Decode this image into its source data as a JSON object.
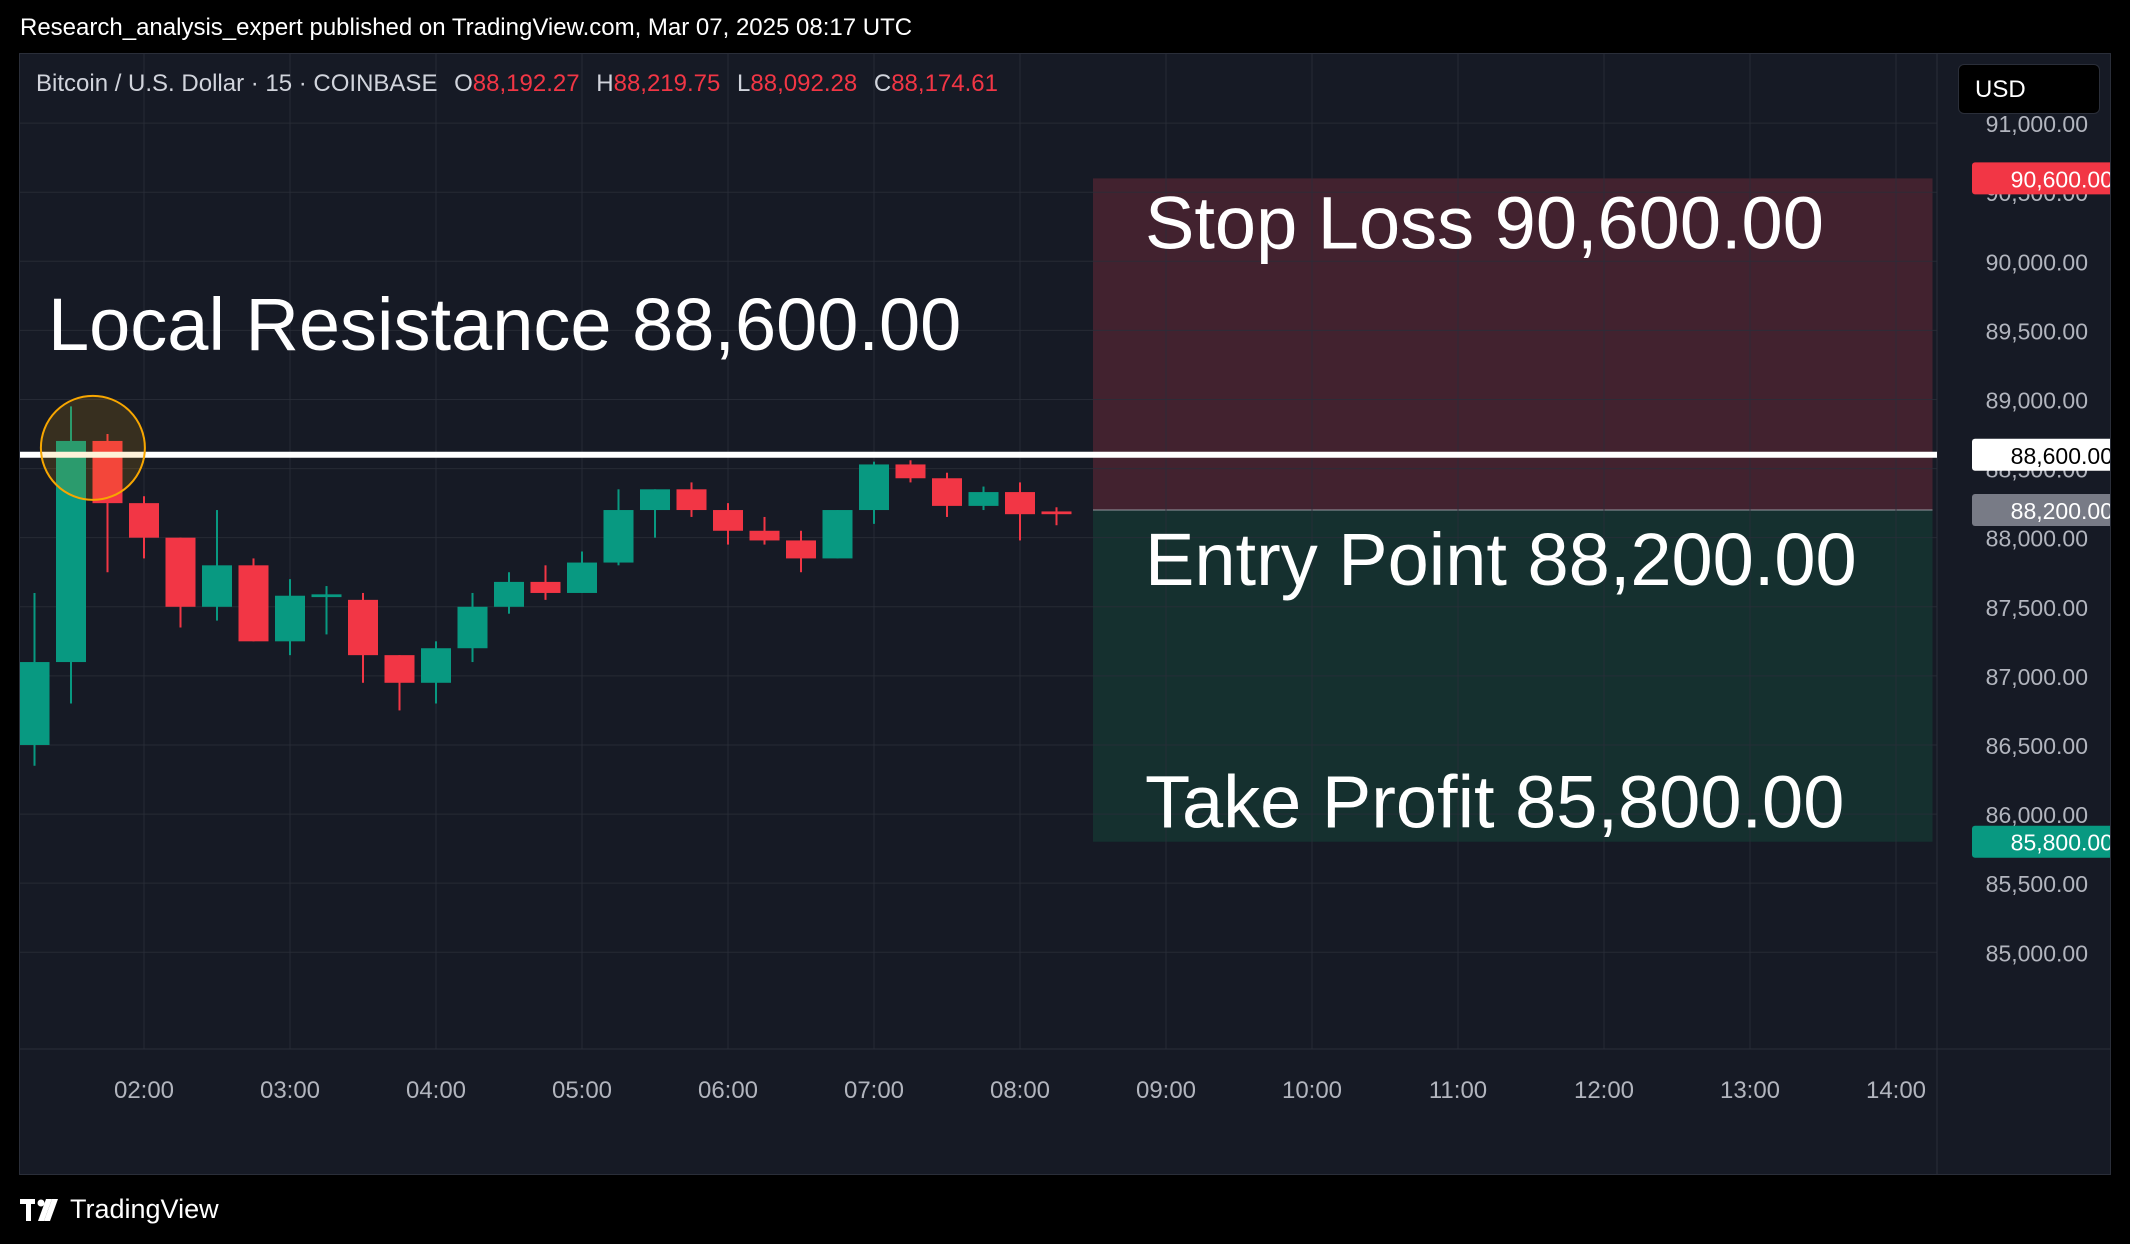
{
  "header": {
    "published": "Research_analysis_expert published on TradingView.com, Mar 07, 2025 08:17 UTC"
  },
  "legend": {
    "symbol": "Bitcoin / U.S. Dollar · 15 · COINBASE",
    "open_label": "O",
    "open": "88,192.27",
    "high_label": "H",
    "high": "88,219.75",
    "low_label": "L",
    "low": "88,092.28",
    "close_label": "C",
    "close": "88,174.61"
  },
  "currency_button": "USD",
  "footer": {
    "brand": "TradingView",
    "logo_icon": "tradingview-logo-icon"
  },
  "colors": {
    "up": "#089981",
    "down": "#f23645",
    "background": "#161a25",
    "grid": "#2a2e39",
    "stop_zone": "#42222f",
    "profit_zone": "#15302f",
    "resistance_line": "#ffffff",
    "highlight_circle": "#f7a600"
  },
  "chart_data": {
    "type": "candlestick",
    "interval_minutes": 15,
    "x_tick_labels": [
      "02:00",
      "03:00",
      "04:00",
      "05:00",
      "06:00",
      "07:00",
      "08:00",
      "09:00",
      "10:00",
      "11:00",
      "12:00",
      "13:00",
      "14:00"
    ],
    "x_start": "01:15",
    "x_end": "14:15",
    "y_tick_values": [
      91000,
      90500,
      90000,
      89500,
      89000,
      88500,
      88000,
      87500,
      87000,
      86500,
      86000,
      85500,
      85000
    ],
    "y_tick_labels": [
      "91,000.00",
      "90,500.00",
      "90,000.00",
      "89,500.00",
      "89,000.00",
      "88,500.00",
      "88,000.00",
      "87,500.00",
      "87,000.00",
      "86,500.00",
      "86,000.00",
      "85,500.00",
      "85,000.00"
    ],
    "ylim": [
      84300,
      91500
    ],
    "candles": [
      {
        "t": "01:15",
        "o": 86500,
        "h": 87600,
        "l": 86350,
        "c": 87100
      },
      {
        "t": "01:30",
        "o": 87100,
        "h": 88950,
        "l": 86800,
        "c": 88700
      },
      {
        "t": "01:45",
        "o": 88700,
        "h": 88750,
        "l": 87750,
        "c": 88250
      },
      {
        "t": "02:00",
        "o": 88250,
        "h": 88300,
        "l": 87850,
        "c": 88000
      },
      {
        "t": "02:15",
        "o": 88000,
        "h": 88000,
        "l": 87350,
        "c": 87500
      },
      {
        "t": "02:30",
        "o": 87500,
        "h": 88200,
        "l": 87400,
        "c": 87800
      },
      {
        "t": "02:45",
        "o": 87800,
        "h": 87850,
        "l": 87250,
        "c": 87250
      },
      {
        "t": "03:00",
        "o": 87250,
        "h": 87700,
        "l": 87150,
        "c": 87580
      },
      {
        "t": "03:15",
        "o": 87570,
        "h": 87650,
        "l": 87300,
        "c": 87590
      },
      {
        "t": "03:30",
        "o": 87550,
        "h": 87600,
        "l": 86950,
        "c": 87150
      },
      {
        "t": "03:45",
        "o": 87150,
        "h": 87150,
        "l": 86750,
        "c": 86950
      },
      {
        "t": "04:00",
        "o": 86950,
        "h": 87250,
        "l": 86800,
        "c": 87200
      },
      {
        "t": "04:15",
        "o": 87200,
        "h": 87600,
        "l": 87100,
        "c": 87500
      },
      {
        "t": "04:30",
        "o": 87500,
        "h": 87750,
        "l": 87450,
        "c": 87680
      },
      {
        "t": "04:45",
        "o": 87680,
        "h": 87800,
        "l": 87550,
        "c": 87600
      },
      {
        "t": "05:00",
        "o": 87600,
        "h": 87900,
        "l": 87600,
        "c": 87820
      },
      {
        "t": "05:15",
        "o": 87820,
        "h": 88350,
        "l": 87800,
        "c": 88200
      },
      {
        "t": "05:30",
        "o": 88200,
        "h": 88350,
        "l": 88000,
        "c": 88350
      },
      {
        "t": "05:45",
        "o": 88350,
        "h": 88400,
        "l": 88150,
        "c": 88200
      },
      {
        "t": "06:00",
        "o": 88200,
        "h": 88250,
        "l": 87950,
        "c": 88050
      },
      {
        "t": "06:15",
        "o": 88050,
        "h": 88150,
        "l": 87950,
        "c": 87980
      },
      {
        "t": "06:30",
        "o": 87980,
        "h": 88050,
        "l": 87750,
        "c": 87850
      },
      {
        "t": "06:45",
        "o": 87850,
        "h": 88200,
        "l": 87850,
        "c": 88200
      },
      {
        "t": "07:00",
        "o": 88200,
        "h": 88550,
        "l": 88100,
        "c": 88530
      },
      {
        "t": "07:15",
        "o": 88530,
        "h": 88560,
        "l": 88400,
        "c": 88430
      },
      {
        "t": "07:30",
        "o": 88430,
        "h": 88470,
        "l": 88150,
        "c": 88230
      },
      {
        "t": "07:45",
        "o": 88230,
        "h": 88370,
        "l": 88200,
        "c": 88330
      },
      {
        "t": "08:00",
        "o": 88330,
        "h": 88400,
        "l": 87980,
        "c": 88170
      },
      {
        "t": "08:15",
        "o": 88190,
        "h": 88220,
        "l": 88090,
        "c": 88170
      }
    ],
    "lines": [
      {
        "name": "Local Resistance",
        "label": "Local Resistance 88,600.00",
        "price": 88600,
        "price_label": "88,600.00"
      }
    ],
    "position": {
      "stop_loss": {
        "price": 90600,
        "label": "Stop Loss 90,600.00",
        "price_label": "90,600.00"
      },
      "entry": {
        "price": 88200,
        "label": "Entry Point 88,200.00",
        "price_label": "88,200.00"
      },
      "take_profit": {
        "price": 85800,
        "label": "Take Profit 85,800.00",
        "price_label": "85,800.00"
      },
      "start": "08:30",
      "end": "14:15"
    },
    "highlight": {
      "t": "01:39",
      "price": 88650
    }
  }
}
